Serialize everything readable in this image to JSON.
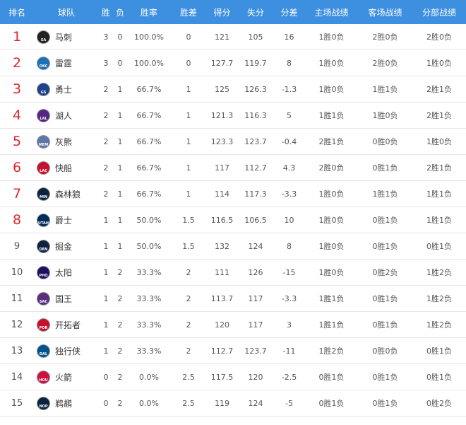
{
  "table": {
    "columns": [
      "排名",
      "球队",
      "胜",
      "负",
      "胜率",
      "胜差",
      "得分",
      "失分",
      "分差",
      "主场战绩",
      "客场战绩",
      "分部战绩"
    ],
    "rows": [
      {
        "rank": "1",
        "logo": "SA",
        "team": "马刺",
        "cells": [
          "3",
          "0",
          "100.0%",
          "0",
          "121",
          "105",
          "16",
          "1胜0负",
          "2胜0负",
          "2胜0负"
        ]
      },
      {
        "rank": "2",
        "logo": "OKC",
        "team": "雷霆",
        "cells": [
          "3",
          "0",
          "100.0%",
          "0",
          "127.7",
          "119.7",
          "8",
          "1胜0负",
          "2胜0负",
          "1胜0负"
        ]
      },
      {
        "rank": "3",
        "logo": "GS",
        "team": "勇士",
        "cells": [
          "2",
          "1",
          "66.7%",
          "1",
          "125",
          "126.3",
          "-1.3",
          "1胜0负",
          "1胜1负",
          "2胜1负"
        ]
      },
      {
        "rank": "4",
        "logo": "LAL",
        "team": "湖人",
        "cells": [
          "2",
          "1",
          "66.7%",
          "1",
          "121.3",
          "116.3",
          "5",
          "1胜1负",
          "1胜0负",
          "2胜1负"
        ]
      },
      {
        "rank": "5",
        "logo": "MEM",
        "team": "灰熊",
        "cells": [
          "2",
          "1",
          "66.7%",
          "1",
          "123.3",
          "123.7",
          "-0.4",
          "2胜1负",
          "0胜0负",
          "1胜0负"
        ]
      },
      {
        "rank": "6",
        "logo": "LAC",
        "team": "快船",
        "cells": [
          "2",
          "1",
          "66.7%",
          "1",
          "117",
          "112.7",
          "4.3",
          "2胜0负",
          "0胜1负",
          "2胜1负"
        ]
      },
      {
        "rank": "7",
        "logo": "MIN",
        "team": "森林狼",
        "cells": [
          "2",
          "1",
          "66.7%",
          "1",
          "114",
          "117.3",
          "-3.3",
          "1胜0负",
          "1胜1负",
          "1胜1负"
        ]
      },
      {
        "rank": "8",
        "logo": "UTAH",
        "team": "爵士",
        "cells": [
          "1",
          "1",
          "50.0%",
          "1.5",
          "116.5",
          "106.5",
          "10",
          "1胜0负",
          "0胜1负",
          "1胜1负"
        ]
      },
      {
        "rank": "9",
        "logo": "DEN",
        "team": "掘金",
        "cells": [
          "1",
          "1",
          "50.0%",
          "1.5",
          "132",
          "124",
          "8",
          "1胜0负",
          "0胜1负",
          "0胜1负"
        ]
      },
      {
        "rank": "10",
        "logo": "PHO",
        "team": "太阳",
        "cells": [
          "1",
          "2",
          "33.3%",
          "2",
          "111",
          "126",
          "-15",
          "1胜0负",
          "0胜2负",
          "1胜2负"
        ]
      },
      {
        "rank": "11",
        "logo": "SAC",
        "team": "国王",
        "cells": [
          "1",
          "2",
          "33.3%",
          "2",
          "113.7",
          "117",
          "-3.3",
          "1胜1负",
          "0胜1负",
          "1胜2负"
        ]
      },
      {
        "rank": "12",
        "logo": "POR",
        "team": "开拓者",
        "cells": [
          "1",
          "2",
          "33.3%",
          "2",
          "120",
          "117",
          "3",
          "1胜1负",
          "0胜1负",
          "1胜2负"
        ]
      },
      {
        "rank": "13",
        "logo": "DAL",
        "team": "独行侠",
        "cells": [
          "1",
          "2",
          "33.3%",
          "2",
          "112.7",
          "123.7",
          "-11",
          "1胜2负",
          "0胜0负",
          "0胜1负"
        ]
      },
      {
        "rank": "14",
        "logo": "HOU",
        "team": "火箭",
        "cells": [
          "0",
          "2",
          "0.0%",
          "2.5",
          "117.5",
          "120",
          "-2.5",
          "0胜1负",
          "0胜1负",
          "0胜1负"
        ]
      },
      {
        "rank": "15",
        "logo": "NOP",
        "team": "鹈鹕",
        "cells": [
          "0",
          "2",
          "0.0%",
          "2.5",
          "119",
          "124",
          "-5",
          "0胜1负",
          "0胜1负",
          "0胜2负"
        ]
      }
    ]
  }
}
